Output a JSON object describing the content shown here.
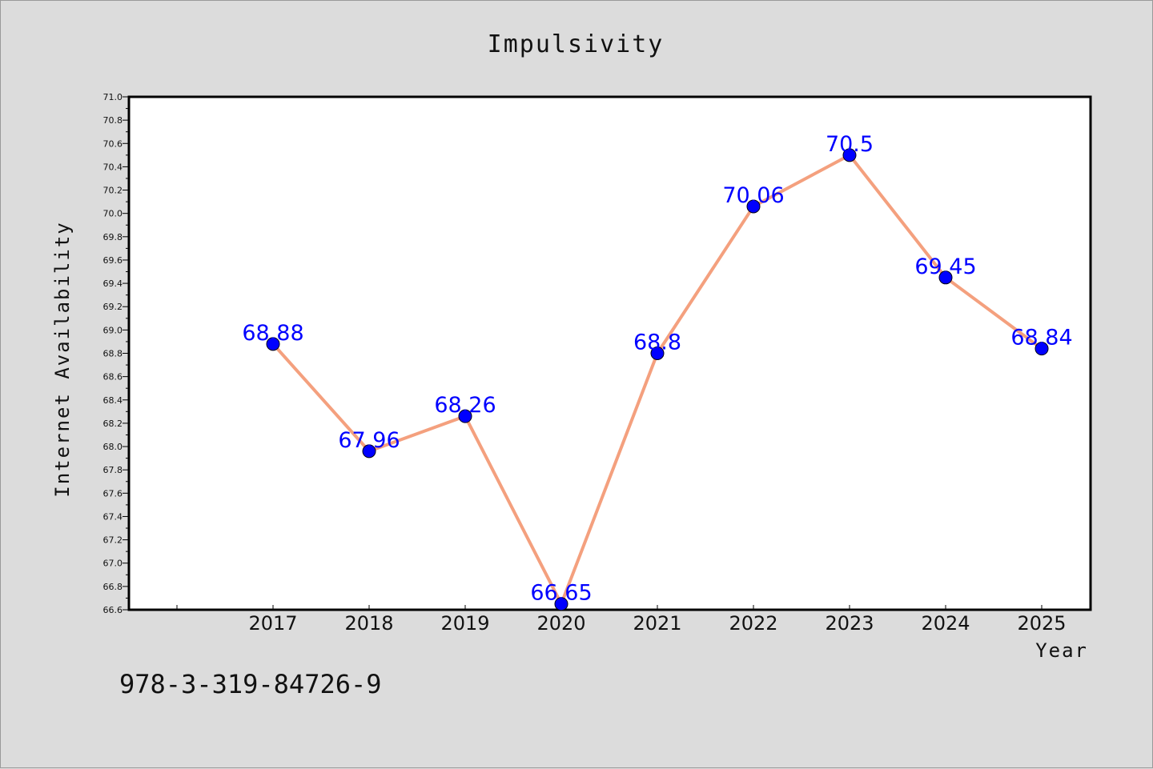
{
  "chart_data": {
    "type": "line",
    "title": "Impulsivity",
    "xlabel": "Year",
    "ylabel": "Internet Availability",
    "categories": [
      "2017",
      "2018",
      "2019",
      "2020",
      "2021",
      "2022",
      "2023",
      "2024",
      "2025"
    ],
    "series": [
      {
        "values": [
          68.88,
          67.96,
          68.26,
          66.65,
          68.8,
          70.06,
          70.5,
          69.45,
          68.84
        ],
        "data_labels": [
          "68.88",
          "67.96",
          "68.26",
          "66.65",
          "68.8",
          "70.06",
          "70.5",
          "69.45",
          "68.84"
        ],
        "line_color": "#f4a07e",
        "marker_color": "#0000ff",
        "label_color": "#0000ff"
      }
    ],
    "ylim": [
      66.6,
      71.0
    ],
    "yticks": [
      "66.6",
      "66.8",
      "67.0",
      "67.2",
      "67.4",
      "67.6",
      "67.8",
      "68.0",
      "68.2",
      "68.4",
      "68.6",
      "68.8",
      "69.0",
      "69.2",
      "69.4",
      "69.6",
      "69.8",
      "70.0",
      "70.2",
      "70.4",
      "70.6",
      "70.8",
      "71.0"
    ],
    "grid": false,
    "legend": "none"
  },
  "footer": {
    "isbn": "978-3-319-84726-9"
  },
  "colors": {
    "background": "#dcdcdc",
    "plot_background": "#ffffff",
    "axis": "#000000"
  }
}
